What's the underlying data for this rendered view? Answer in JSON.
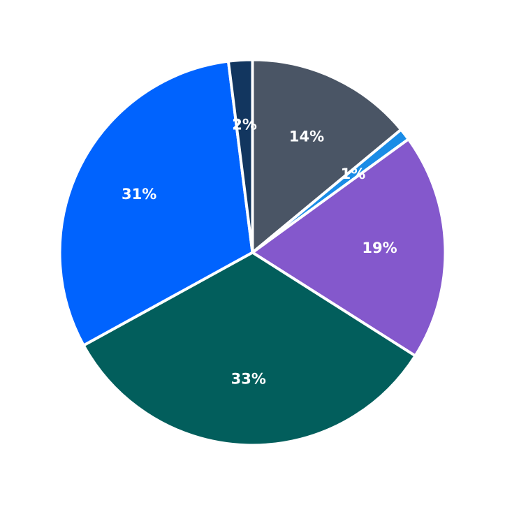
{
  "chart_data": {
    "type": "pie",
    "start": "12 o'clock",
    "direction": "clockwise",
    "legend": "none",
    "slices": [
      {
        "label": "14%",
        "value": 14,
        "color": "#4a5565"
      },
      {
        "label": "1%",
        "value": 1,
        "color": "#1a8ce6"
      },
      {
        "label": "19%",
        "value": 19,
        "color": "#8458cc"
      },
      {
        "label": "33%",
        "value": 33,
        "color": "#025e5c"
      },
      {
        "label": "31%",
        "value": 31,
        "color": "#0063fe"
      },
      {
        "label": "2%",
        "value": 2,
        "color": "#12365f"
      }
    ]
  }
}
